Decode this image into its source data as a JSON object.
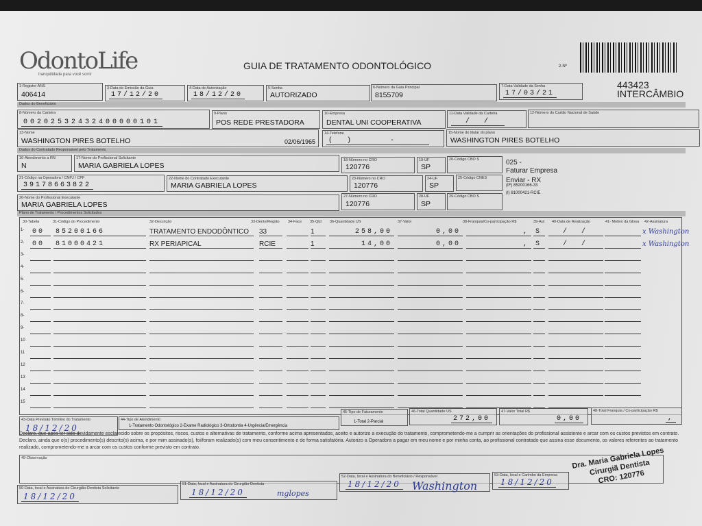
{
  "header": {
    "logo": "OdontoLife",
    "logo_tagline": "tranquilidade para você sorrir",
    "title": "GUIA DE TRATAMENTO ODONTOLÓGICO",
    "guide_number_label": "2-Nº",
    "code": "443423",
    "code_note": "INTERCÂMBIO"
  },
  "guide": {
    "ans": {
      "label": "1-Registro ANS",
      "value": "406414"
    },
    "issue_date": {
      "label": "3-Data de Emissão da Guia",
      "value": "17/12/20"
    },
    "auth_date": {
      "label": "4-Data de Autorização",
      "value": "18/12/20"
    },
    "password": {
      "label": "5-Senha",
      "value": "AUTORIZADO"
    },
    "main_guide": {
      "label": "6-Número da Guia Principal",
      "value": "8155709"
    },
    "password_validity": {
      "label": "7-Data Validade da Senha",
      "value": "17/03/21"
    }
  },
  "beneficiary": {
    "section": "Dados do Beneficiário",
    "card": {
      "label": "8-Número da Carteira",
      "value": "00202532432400000101"
    },
    "plan": {
      "label": "9-Plano",
      "value": "POS REDE PRESTADORA"
    },
    "company": {
      "label": "10-Empresa",
      "value": "DENTAL UNI  COOPERATIVA"
    },
    "card_validity": {
      "label": "11-Data Validade da Carteira",
      "value": "  /  /  "
    },
    "cns": {
      "label": "12-Número do Cartão Nacional de Saúde",
      "value": ""
    },
    "name": {
      "label": "13-Nome",
      "value": "WASHINGTON PIRES BOTELHO",
      "birth": "02/06/1965"
    },
    "phone": {
      "label": "14-Telefone",
      "value": "(  )      -     "
    },
    "holder": {
      "label": "15-Nome do titular do plano",
      "value": "WASHINGTON PIRES BOTELHO"
    }
  },
  "contractor": {
    "section": "Dados do Contratado Responsável pelo Tratamento",
    "rn": {
      "label": "16-Atendimento a RN",
      "value": "N"
    },
    "requester": {
      "label": "17-Nome do Profissional Solicitante",
      "value": "MARIA GABRIELA LOPES"
    },
    "cro1": {
      "label": "18-Número no CRO",
      "value": "120776"
    },
    "uf1": {
      "label": "19-UF",
      "value": "SP"
    },
    "cbo1": {
      "label": "20-Código CBO S",
      "value": ""
    },
    "code": {
      "label": "21-Código na Operadora / CNPJ / CPF",
      "value": "39178663822"
    },
    "executor_contracted": {
      "label": "22-Nome do Contratado Executante",
      "value": "MARIA GABRIELA LOPES"
    },
    "cro2": {
      "label": "23-Número no CRO",
      "value": "120776"
    },
    "uf2": {
      "label": "24-UF",
      "value": "SP"
    },
    "cnes": {
      "label": "25-Código CNES",
      "value": ""
    },
    "executor": {
      "label": "26-Nome do Profissional Executante",
      "value": "MARIA GABRIELA LOPES"
    },
    "cro3": {
      "label": "27-Número no CRO",
      "value": "120776"
    },
    "uf3": {
      "label": "28-UF",
      "value": "SP"
    },
    "cbo3": {
      "label": "29-Código CBO S",
      "value": ""
    },
    "notes": [
      "025 -",
      "Faturar Empresa",
      "Enviar - RX",
      "(IF) 85200166-33",
      "(I) 81000421-RCIE"
    ]
  },
  "procedures": {
    "section": "Plano de Tratamento / Procedimentos Solicitados",
    "columns": [
      "30-Tabela",
      "31-Código do Procedimento",
      "32-Descrição",
      "33-Dente/Região",
      "34-Face",
      "35-Qtd",
      "36-Quantidade US",
      "37-Valor",
      "38-Franquia/Co-participação R$",
      "39-Aut",
      "40-Data de Realização",
      "41- Motivo da Glosa",
      "42-Assinatura"
    ],
    "rows": [
      {
        "n": "1-",
        "tabela": "00",
        "codigo": "85200166",
        "descricao": "TRATAMENTO ENDODÔNTICO",
        "dente": "33",
        "face": "",
        "qtd": "1",
        "qus": "258,00",
        "valor": "0,00",
        "franquia": ",",
        "aut": "S",
        "data": "  /  /  ",
        "glosa": "",
        "assinatura": "x Washington"
      },
      {
        "n": "2-",
        "tabela": "00",
        "codigo": "81000421",
        "descricao": "RX PERIAPICAL",
        "dente": "RCIE",
        "face": "",
        "qtd": "1",
        "qus": "14,00",
        "valor": "0,00",
        "franquia": ",",
        "aut": "S",
        "data": "  /  /  ",
        "glosa": "",
        "assinatura": "x Washington"
      },
      {
        "n": "3-"
      },
      {
        "n": "4-"
      },
      {
        "n": "5-"
      },
      {
        "n": "6-"
      },
      {
        "n": "7-"
      },
      {
        "n": "8-"
      },
      {
        "n": "9-"
      },
      {
        "n": "10"
      },
      {
        "n": "11"
      },
      {
        "n": "12"
      },
      {
        "n": "13"
      },
      {
        "n": "14"
      },
      {
        "n": "15"
      }
    ]
  },
  "totals": {
    "end_date": {
      "label": "43-Data Previsão Término do Tratamento",
      "value": "18/12/20"
    },
    "service_type": {
      "label": "44-Tipo de Atendimento",
      "options": "1-Tratamento Odontológico 2-Exame Radiológico 3-Ortodontia 4-Urgência/Emergência"
    },
    "billing_type": {
      "label": "45-Tipo de Faturamento",
      "options": "1-Total 2-Parcial"
    },
    "total_us": {
      "label": "46-Total Quantidade US",
      "value": "272,00"
    },
    "total_value": {
      "label": "47-Valor Total R$",
      "value": "0,00"
    },
    "total_franchise": {
      "label": "48-Total Franquia / Co-participação R$",
      "value": ","
    }
  },
  "declaration": "Declaro, que após ter sido devidamente esclarecido sobre os propósitos, riscos, custos e alternativas de tratamento, conforme acima apresentados, aceito e autorizo a execução do tratamento, comprometendo-me a cumprir as orientações do profissional assistente e arcar com os custos previstos em contrato. Declaro, ainda que o(s) procedimento(s) descrito(s) acima, e por mim assinado(s), foi/foram realizado(s) com meu consentimento e de forma satisfatória. Autorizo a Operadora a pagar em meu nome e por minha conta, ao profissional contratado que assina esse documento, os valores referentes ao tratamento realizado, comprometendo-me a arcar com os custos conforme previsto em contrato.",
  "observation": {
    "label": "49-Observação",
    "value": ""
  },
  "signatures": {
    "s50": {
      "label": "50-Data, local e Assinatura do Cirurgião-Dentista Solicitante",
      "date": "18/12/20"
    },
    "s51": {
      "label": "51-Data, local e Assinatura do Cirurgião-Dentista",
      "date": "18/12/20",
      "sign": "mglopes"
    },
    "s52": {
      "label": "52-Data, local e Assinatura do Beneficiário / Responsável",
      "date": "18/12/20",
      "sign": "Washington"
    },
    "s53": {
      "label": "53-Data, local e Carimbo da Empresa",
      "date": "18/12/20"
    },
    "stamp": [
      "Dra. Maria Gabriela Lopes",
      "Cirurgiã Dentista",
      "CRO: 120776"
    ]
  },
  "colors": {
    "ink": "#2d3a94",
    "paper": "#e6e6e6",
    "section_bar": "#b9b9b9"
  }
}
